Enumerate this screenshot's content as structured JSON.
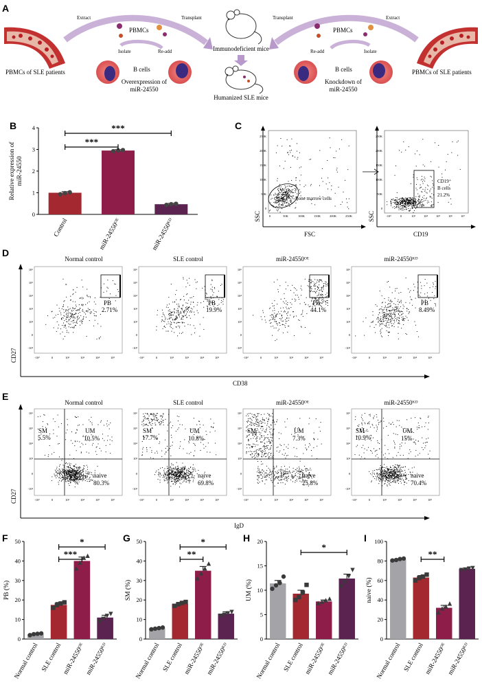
{
  "panels": {
    "A": "A",
    "B": "B",
    "C": "C",
    "D": "D",
    "E": "E",
    "F": "F",
    "G": "G",
    "H": "H",
    "I": "I"
  },
  "schematic": {
    "extract_left": "Extract",
    "transplant_left": "Transplant",
    "transplant_right": "Transplant",
    "extract_right": "Extract",
    "pbmcs_left": "PBMCs",
    "pbmcs_right": "PBMCs",
    "isolate_left": "Isolate",
    "readd_left": "Re-add",
    "readd_right": "Re-add",
    "isolate_right": "Isolate",
    "bcells_left": "B cells",
    "bcells_right": "B cells",
    "over_line1": "Overexpression of",
    "over_line2": "miR-24550",
    "knock_line1": "Knockdown of",
    "knock_line2": "miR-24550",
    "pbmc_sle_left": "PBMCs of SLE patients",
    "pbmc_sle_right": "PBMCs of SLE patients",
    "immunodeficient": "Immunodeficient mice",
    "humanized": "Humanized SLE mice"
  },
  "flow_c": {
    "ssc": "SSC",
    "fsc": "FSC",
    "cd19": "CD19",
    "gate1": "Bone marrow cells",
    "gate2_line1": "CD19⁺",
    "gate2_line2": "B cells",
    "gate2_pct": "21.2%",
    "yticks": [
      "250K",
      "200K",
      "150K",
      "100K",
      "50K",
      "0"
    ],
    "xticks": [
      "0",
      "50K",
      "100K",
      "150K",
      "200K",
      "250K"
    ]
  },
  "flow_d": {
    "ylabel": "CD27",
    "xlabel": "CD38",
    "gate": "PB",
    "titles": [
      "Normal control",
      "SLE control",
      "miR-24550ᴼᴱ",
      "miR-24550ᴷᴰ"
    ],
    "pcts": [
      "2.71%",
      "19.9%",
      "44.1%",
      "8.49%"
    ]
  },
  "flow_e": {
    "ylabel": "CD27",
    "xlabel": "IgD",
    "sm": "SM",
    "um": "UM",
    "naive": "naive",
    "titles": [
      "Normal control",
      "SLE control",
      "miR-24550ᴼᴱ",
      "miR-24550ᴷᴰ"
    ],
    "sm_pcts": [
      "5.5%",
      "17.7%",
      "",
      ""
    ],
    "sm_pcts_b": [
      "",
      "",
      "",
      "10.9%"
    ],
    "um_pcts": [
      "10.5%",
      "10.8%",
      "7.3%",
      "15%"
    ],
    "naive_pcts": [
      "80.3%",
      "69.8%",
      "25.8%",
      "70.4%"
    ]
  },
  "chart_data": [
    {
      "panel": "B",
      "type": "bar",
      "title": "",
      "xlabel": "",
      "ylabel": "Relative expression of miR-24550",
      "categories": [
        "Control",
        "miR-24550ᴼᴱ",
        "miR-24550ᴷᴰ"
      ],
      "values": [
        1.0,
        2.95,
        0.47
      ],
      "errors": [
        0.05,
        0.04,
        0.04
      ],
      "points": [
        [
          0.93,
          0.98,
          1.02
        ],
        [
          2.92,
          2.96,
          2.97
        ],
        [
          0.44,
          0.47,
          0.49
        ]
      ],
      "ylim": [
        0,
        4
      ],
      "yticks": [
        0,
        1,
        2,
        3,
        4
      ],
      "colors": [
        "#a3282f",
        "#8e1d4a",
        "#5a2350"
      ],
      "significance": [
        {
          "from": 0,
          "to": 1,
          "label": "***"
        },
        {
          "from": 0,
          "to": 2,
          "label": "***"
        }
      ]
    },
    {
      "panel": "F",
      "type": "bar",
      "ylabel": "PB (%)",
      "categories": [
        "Normal control",
        "SLE control",
        "miR-24550ᴼᴱ",
        "miR-24550ᴷᴰ"
      ],
      "values": [
        2.5,
        17.5,
        40,
        11
      ],
      "errors": [
        0.4,
        1.2,
        2.0,
        1.2
      ],
      "points": [
        [
          2,
          2.5,
          2.7,
          2.9
        ],
        [
          16,
          17.4,
          18.2,
          18.8
        ],
        [
          36,
          39,
          41.5,
          42.5
        ],
        [
          9,
          10.5,
          12,
          13
        ]
      ],
      "ylim": [
        0,
        50
      ],
      "yticks": [
        0,
        10,
        20,
        30,
        40,
        50
      ],
      "colors": [
        "#a3a3a8",
        "#a3282f",
        "#8e1d4a",
        "#5a2350"
      ],
      "significance": [
        {
          "from": 1,
          "to": 2,
          "label": "***"
        },
        {
          "from": 1,
          "to": 3,
          "label": "*"
        }
      ]
    },
    {
      "panel": "G",
      "type": "bar",
      "ylabel": "SM (%)",
      "categories": [
        "Normal control",
        "SLE control",
        "miR-24550ᴼᴱ",
        "miR-24550ᴷᴰ"
      ],
      "values": [
        5.5,
        18,
        35,
        13
      ],
      "errors": [
        0.3,
        0.8,
        2.2,
        0.9
      ],
      "points": [
        [
          5,
          5.3,
          5.6,
          5.9
        ],
        [
          17,
          17.8,
          18.5,
          19
        ],
        [
          31,
          33.5,
          36,
          38.5
        ],
        [
          12,
          12.5,
          13.3,
          14
        ]
      ],
      "ylim": [
        0,
        50
      ],
      "yticks": [
        0,
        10,
        20,
        30,
        40,
        50
      ],
      "colors": [
        "#a3a3a8",
        "#a3282f",
        "#8e1d4a",
        "#5a2350"
      ],
      "significance": [
        {
          "from": 1,
          "to": 2,
          "label": "**"
        },
        {
          "from": 1,
          "to": 3,
          "label": "*"
        }
      ]
    },
    {
      "panel": "H",
      "type": "bar",
      "ylabel": "UM (%)",
      "categories": [
        "Normal control",
        "SLE control",
        "miR-24550ᴼᴱ",
        "miR-24550ᴷᴰ"
      ],
      "values": [
        11.4,
        9.3,
        7.7,
        12.4
      ],
      "errors": [
        0.6,
        0.7,
        0.3,
        0.9
      ],
      "points": [
        [
          10.3,
          11,
          11.5,
          12.8
        ],
        [
          8,
          8.6,
          9.5,
          11.1
        ],
        [
          7.3,
          7.6,
          7.9,
          8.2
        ],
        [
          10.8,
          11.7,
          12.9,
          14.2
        ]
      ],
      "ylim": [
        0,
        20
      ],
      "yticks": [
        0,
        5,
        10,
        15,
        20
      ],
      "colors": [
        "#a3a3a8",
        "#a3282f",
        "#8e1d4a",
        "#5a2350"
      ],
      "significance": [
        {
          "from": 1,
          "to": 3,
          "label": "*"
        }
      ]
    },
    {
      "panel": "I",
      "type": "bar",
      "ylabel": "naive (%)",
      "categories": [
        "Normal control",
        "SLE control",
        "miR-24550ᴼᴱ",
        "miR-24550ᴷᴰ"
      ],
      "values": [
        81.5,
        63,
        32,
        72
      ],
      "errors": [
        0.7,
        2.0,
        2.5,
        0.8
      ],
      "points": [
        [
          80.5,
          81,
          82,
          82.5
        ],
        [
          60,
          62.5,
          64,
          66
        ],
        [
          27,
          31,
          33,
          36
        ],
        [
          71,
          71.5,
          72.5,
          73
        ]
      ],
      "ylim": [
        0,
        100
      ],
      "yticks": [
        0,
        20,
        40,
        60,
        80,
        100
      ],
      "colors": [
        "#a3a3a8",
        "#a3282f",
        "#8e1d4a",
        "#5a2350"
      ],
      "significance": [
        {
          "from": 1,
          "to": 2,
          "label": "**"
        }
      ]
    }
  ]
}
